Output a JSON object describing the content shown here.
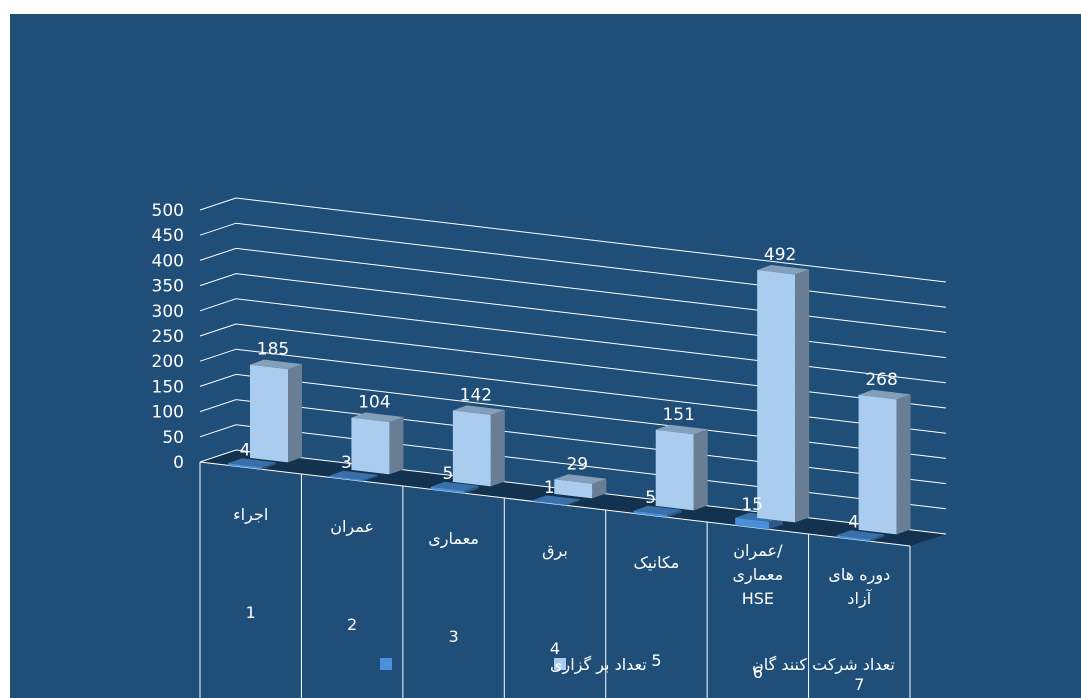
{
  "chart_data": {
    "type": "bar",
    "categories": [
      "اجراء",
      "عمران",
      "معماری",
      "برق",
      "مکانیک",
      "عمران/معماری HSE",
      "دوره های آزاد"
    ],
    "category_lines": [
      [
        "اجراء"
      ],
      [
        "عمران"
      ],
      [
        "معماری"
      ],
      [
        "برق"
      ],
      [
        "مکانیک"
      ],
      [
        "عمران/",
        "معماری",
        "HSE"
      ],
      [
        "دوره های",
        "آزاد"
      ]
    ],
    "index_labels": [
      "1",
      "2",
      "3",
      "4",
      "5",
      "6",
      "7"
    ],
    "series": [
      {
        "name": "تعداد بر گزاری",
        "values": [
          4,
          3,
          5,
          1,
          5,
          15,
          4
        ],
        "color": "#4a90d9"
      },
      {
        "name": "تعداد شرکت کنند گان",
        "values": [
          185,
          104,
          142,
          29,
          151,
          492,
          268
        ],
        "color": "#a9ccef"
      }
    ],
    "yticks": [
      "0",
      "50",
      "100",
      "150",
      "200",
      "250",
      "300",
      "350",
      "400",
      "450",
      "500"
    ],
    "ylim": [
      0,
      500
    ],
    "grid": true,
    "legend_position": "bottom",
    "background": "#1f4e79"
  }
}
